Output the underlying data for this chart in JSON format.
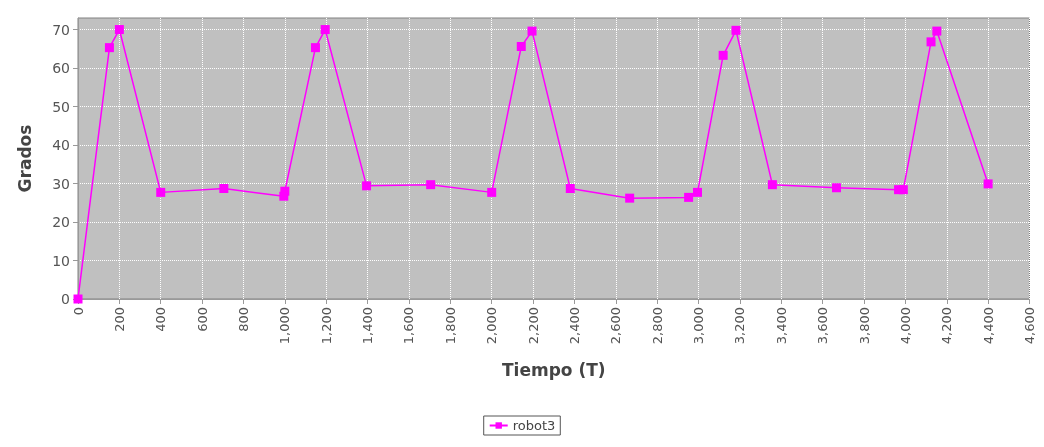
{
  "chart_data": {
    "type": "line",
    "xlabel": "Tiempo (T)",
    "ylabel": "Grados",
    "legend": "bottom",
    "grid": true,
    "marker": "square",
    "line_style": "solid",
    "xlim": [
      0,
      4600
    ],
    "ylim": [
      0,
      73
    ],
    "xticks": [
      0,
      200,
      400,
      600,
      800,
      {
        "value": 1000,
        "label": "1,000"
      },
      {
        "value": 1200,
        "label": "1,200"
      },
      {
        "value": 1400,
        "label": "1,400"
      },
      {
        "value": 1600,
        "label": "1,600"
      },
      {
        "value": 1800,
        "label": "1,800"
      },
      {
        "value": 2000,
        "label": "2,000"
      },
      {
        "value": 2200,
        "label": "2,200"
      },
      {
        "value": 2400,
        "label": "2,400"
      },
      {
        "value": 2600,
        "label": "2,600"
      },
      {
        "value": 2800,
        "label": "2,800"
      },
      {
        "value": 3000,
        "label": "3,000"
      },
      {
        "value": 3200,
        "label": "3,200"
      },
      {
        "value": 3400,
        "label": "3,400"
      },
      {
        "value": 3600,
        "label": "3,600"
      },
      {
        "value": 3800,
        "label": "3,800"
      },
      {
        "value": 4000,
        "label": "4,000"
      },
      {
        "value": 4200,
        "label": "4,200"
      },
      {
        "value": 4400,
        "label": "4,400"
      },
      {
        "value": 4600,
        "label": "4,600"
      }
    ],
    "yticks": [
      0,
      10,
      20,
      30,
      40,
      50,
      60,
      70
    ],
    "series": [
      {
        "name": "robot3",
        "color": "#ff00ff",
        "x": [
          0,
          152,
          200,
          400,
          705,
          995,
          1000,
          1148,
          1195,
          1395,
          1705,
          2000,
          2143,
          2195,
          2380,
          2667,
          2952,
          2995,
          3119,
          3181,
          3357,
          3667,
          3967,
          3990,
          4124,
          4152,
          4400
        ],
        "values": [
          0,
          65.3,
          70,
          27.7,
          28.7,
          26.7,
          28,
          65.3,
          70,
          29.4,
          29.7,
          27.7,
          65.6,
          69.6,
          28.7,
          26.2,
          26.4,
          27.7,
          63.3,
          69.8,
          29.7,
          28.9,
          28.4,
          28.4,
          66.8,
          69.6,
          29.9
        ]
      }
    ]
  }
}
